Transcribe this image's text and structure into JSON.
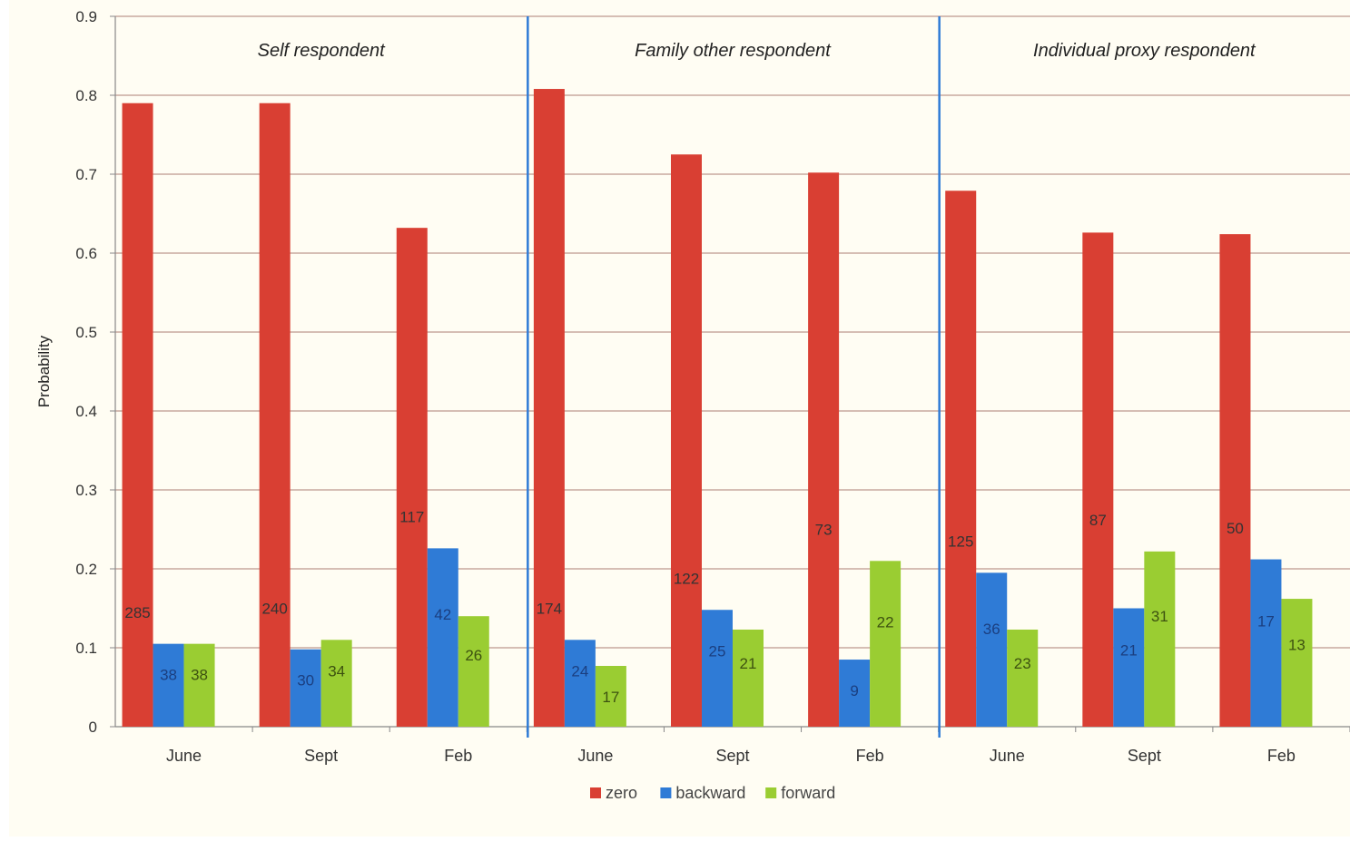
{
  "chart_data": {
    "type": "bar",
    "ylabel": "Probability",
    "ylim": [
      0,
      0.9
    ],
    "yticks": [
      "0",
      "0.1",
      "0.2",
      "0.3",
      "0.4",
      "0.5",
      "0.6",
      "0.7",
      "0.8",
      "0.9"
    ],
    "grid": true,
    "legend_position": "bottom-center",
    "colors": {
      "zero": "#d93f33",
      "backward": "#2f7bd6",
      "forward": "#9acd32",
      "divider": "#2f7bd6",
      "grid": "#c8a9a0"
    },
    "legend": [
      "zero",
      "backward",
      "forward"
    ],
    "panels": [
      {
        "title": "Self respondent",
        "categories": [
          "June",
          "Sept",
          "Feb"
        ],
        "series": [
          {
            "name": "zero",
            "values": [
              0.79,
              0.79,
              0.632
            ],
            "counts": [
              "285",
              "240",
              "117"
            ]
          },
          {
            "name": "backward",
            "values": [
              0.105,
              0.098,
              0.226
            ],
            "counts": [
              "38",
              "30",
              "42"
            ]
          },
          {
            "name": "forward",
            "values": [
              0.105,
              0.11,
              0.14
            ],
            "counts": [
              "38",
              "34",
              "26"
            ]
          }
        ]
      },
      {
        "title": "Family other respondent",
        "categories": [
          "June",
          "Sept",
          "Feb"
        ],
        "series": [
          {
            "name": "zero",
            "values": [
              0.808,
              0.725,
              0.702
            ],
            "counts": [
              "174",
              "122",
              "73"
            ]
          },
          {
            "name": "backward",
            "values": [
              0.11,
              0.148,
              0.085
            ],
            "counts": [
              "24",
              "25",
              "9"
            ]
          },
          {
            "name": "forward",
            "values": [
              0.077,
              0.123,
              0.21
            ],
            "counts": [
              "17",
              "21",
              "22"
            ]
          }
        ]
      },
      {
        "title": "Individual proxy respondent",
        "categories": [
          "June",
          "Sept",
          "Feb"
        ],
        "series": [
          {
            "name": "zero",
            "values": [
              0.679,
              0.626,
              0.624
            ],
            "counts": [
              "125",
              "87",
              "50"
            ]
          },
          {
            "name": "backward",
            "values": [
              0.195,
              0.15,
              0.212
            ],
            "counts": [
              "36",
              "21",
              "17"
            ]
          },
          {
            "name": "forward",
            "values": [
              0.123,
              0.222,
              0.162
            ],
            "counts": [
              "23",
              "31",
              "13"
            ]
          }
        ]
      }
    ]
  }
}
